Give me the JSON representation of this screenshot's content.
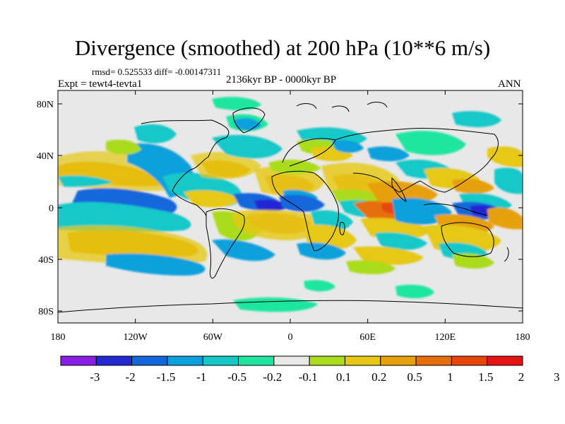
{
  "title": "Divergence (smoothed) at 200 hPa (10**6 m/s)",
  "stats": "rmsd= 0.525533 diff= -0.00147311",
  "experiment": "Expt = tewt4-tevta1",
  "period": "2136kyr BP - 0000kyr BP",
  "season": "ANN",
  "lat_ticks": [
    "80N",
    "40N",
    "0",
    "40S",
    "80S"
  ],
  "lon_ticks": [
    "180",
    "120W",
    "60W",
    "0",
    "60E",
    "120E",
    "180"
  ],
  "colorbar": {
    "colors": [
      "#8b1ee6",
      "#2328d2",
      "#1466dc",
      "#0aa0dc",
      "#14c8c8",
      "#1ee6a0",
      "#e8e8e8",
      "#aadc1e",
      "#e6c814",
      "#e6a00a",
      "#e66e0a",
      "#e6460a",
      "#e61414"
    ],
    "labels": [
      "-3",
      "-2",
      "-1.5",
      "-1",
      "-0.5",
      "-0.2",
      "-0.1",
      "0.1",
      "0.2",
      "0.5",
      "1",
      "1.5",
      "2",
      "3"
    ]
  }
}
